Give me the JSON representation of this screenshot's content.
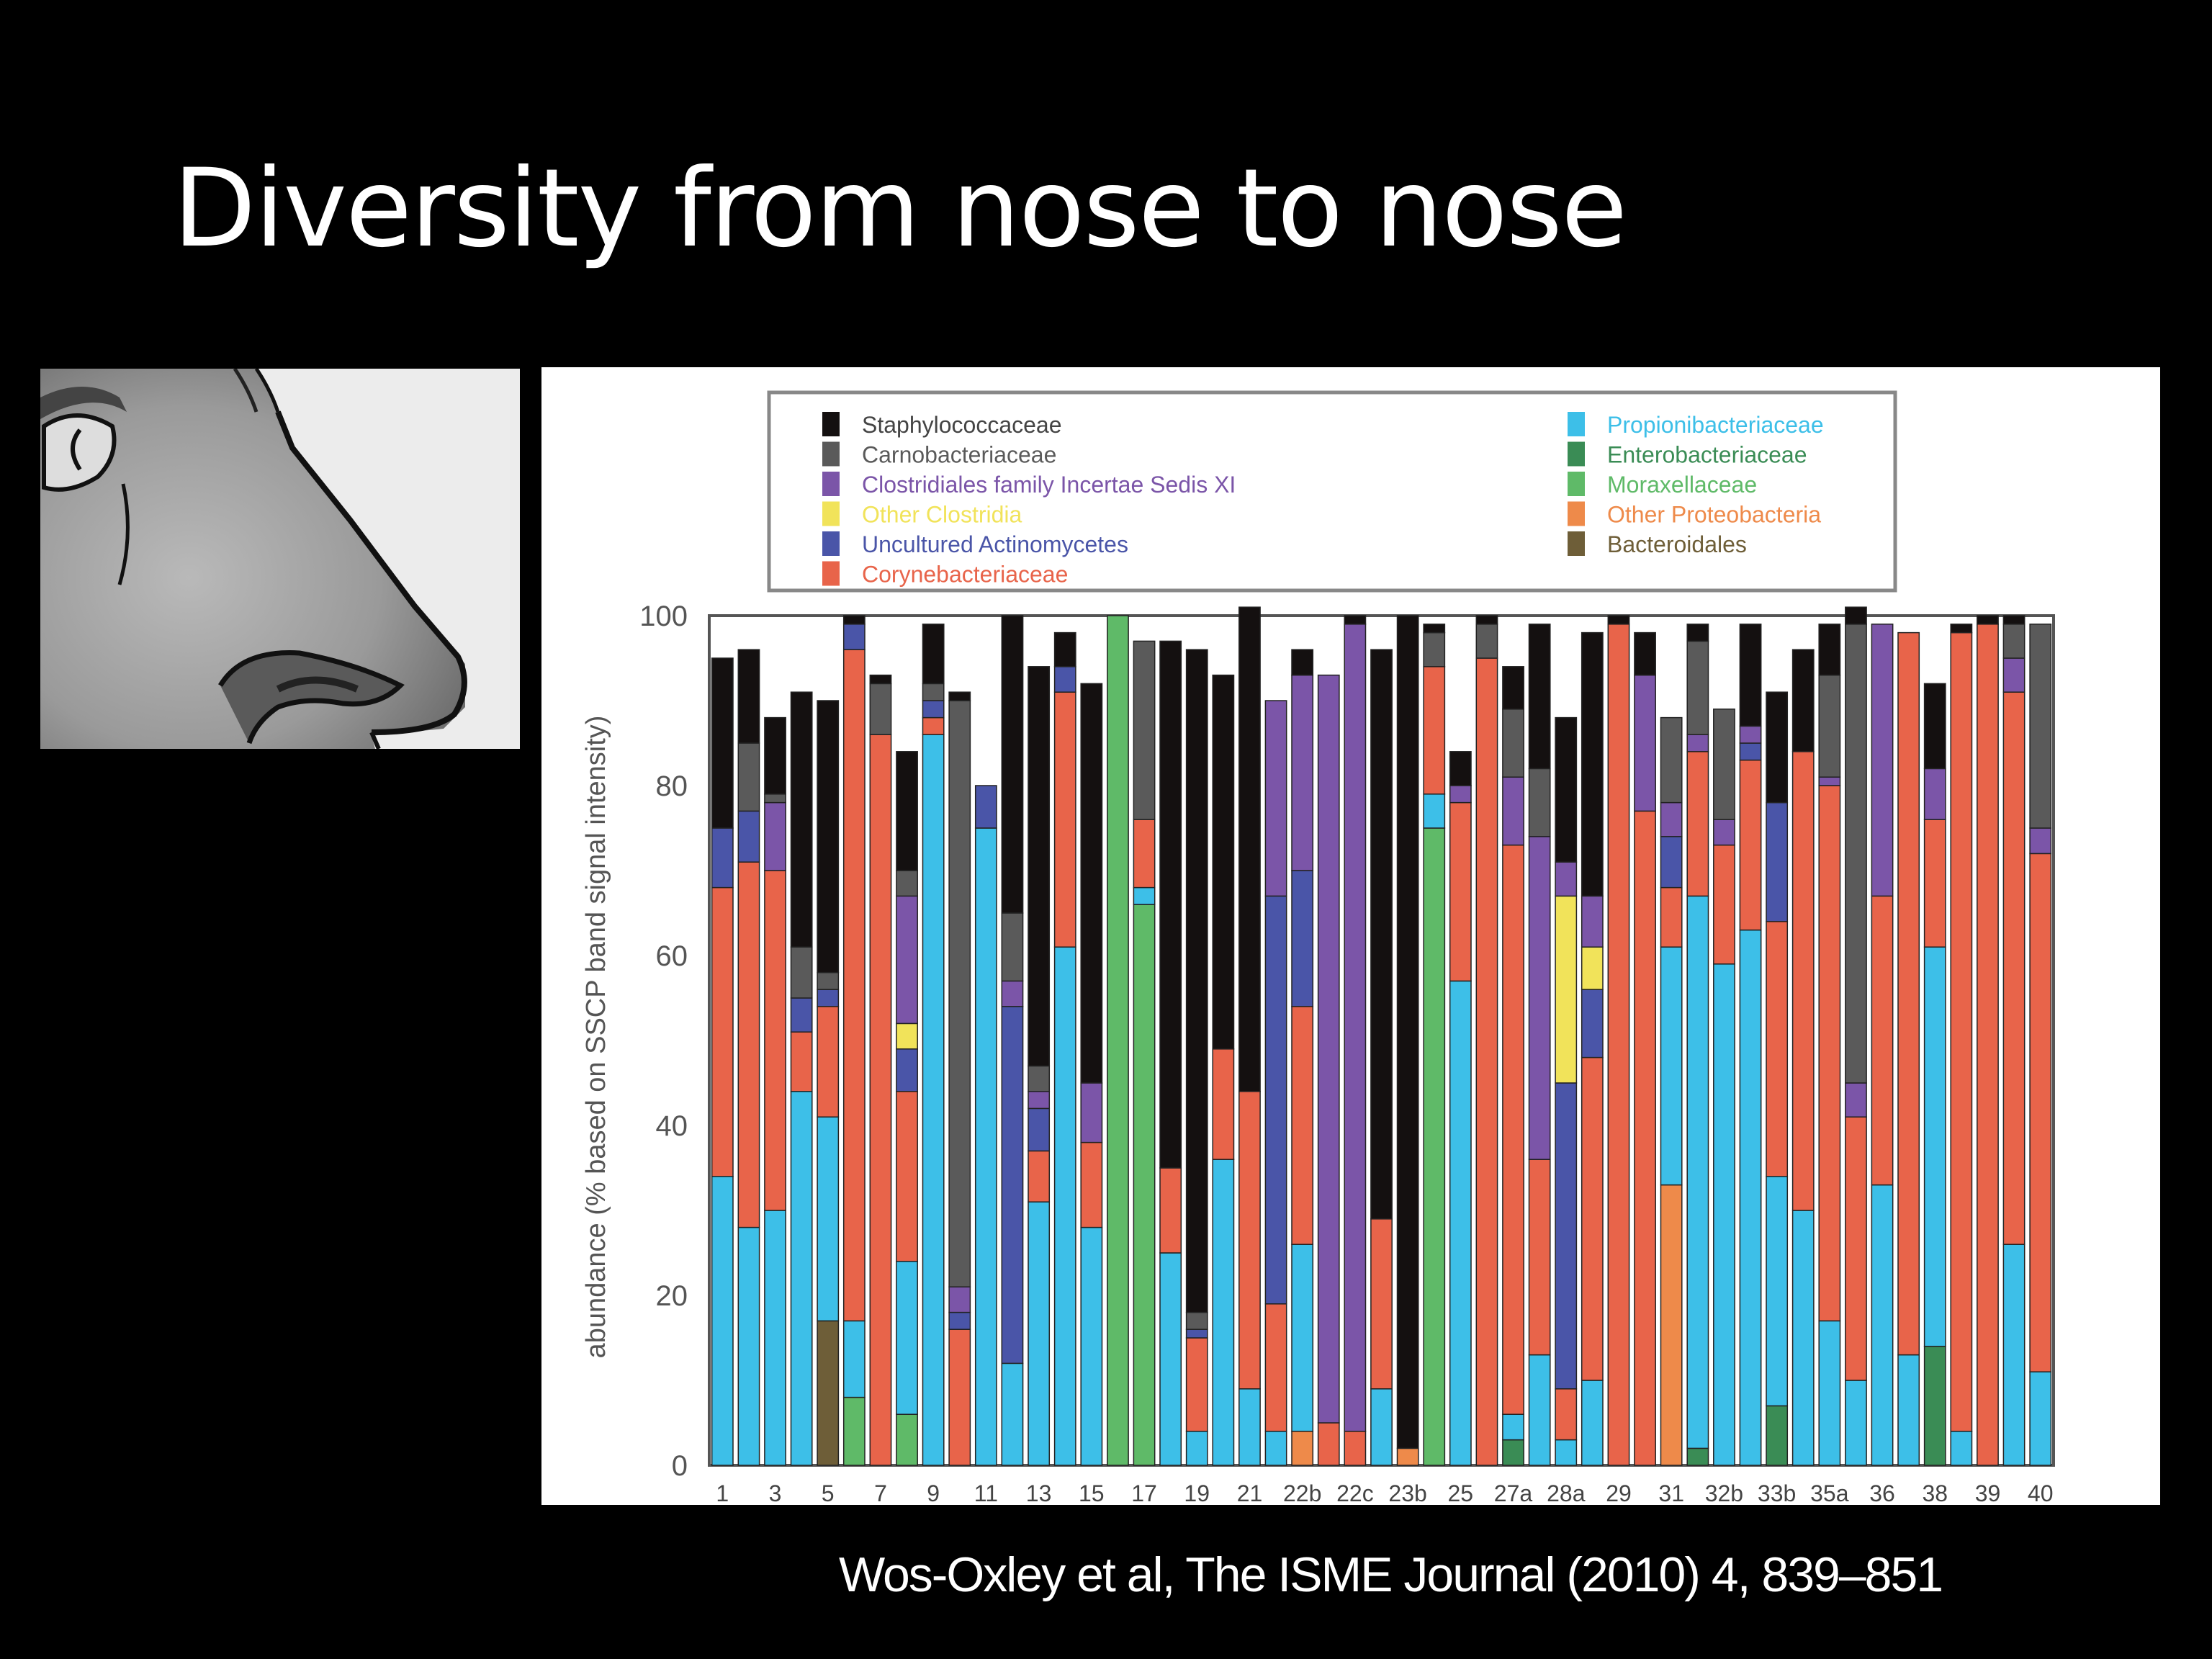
{
  "slide": {
    "title": "Diversity from nose to nose",
    "citation": "Wos-Oxley et al, The ISME Journal (2010) 4, 839–851",
    "illustration": "nose-profile-drawing"
  },
  "chart_data": {
    "type": "bar",
    "stacked": true,
    "title": "",
    "xlabel": "",
    "ylabel": "abundance (% based on SSCP band signal intensity)",
    "ylim": [
      0,
      100
    ],
    "yticks": [
      0,
      20,
      40,
      60,
      80,
      100
    ],
    "grid": false,
    "legend_placement": "top",
    "legend": [
      {
        "key": "staph",
        "label": "Staphylococcaceae",
        "color": "#141010"
      },
      {
        "key": "carno",
        "label": "Carnobacteriaceae",
        "color": "#5a5a5a"
      },
      {
        "key": "clos",
        "label": "Clostridiales family Incertae Sedis XI",
        "color": "#7b55a8"
      },
      {
        "key": "oclos",
        "label": "Other Clostridia",
        "color": "#f1e35a"
      },
      {
        "key": "unact",
        "label": "Uncultured Actinomycetes",
        "color": "#4a55a8"
      },
      {
        "key": "coryn",
        "label": "Corynebacteriaceae",
        "color": "#e8644a"
      },
      {
        "key": "propi",
        "label": "Propionibacteriaceae",
        "color": "#3dbfe8"
      },
      {
        "key": "entero",
        "label": "Enterobacteriaceae",
        "color": "#3a8c55"
      },
      {
        "key": "morax",
        "label": "Moraxellaceae",
        "color": "#5fba68"
      },
      {
        "key": "oprot",
        "label": "Other Proteobacteria",
        "color": "#ee8a4a"
      },
      {
        "key": "bact",
        "label": "Bacteroidales",
        "color": "#6e5e38"
      }
    ],
    "tick_labels": [
      "1",
      "3",
      "5",
      "7",
      "9",
      "11",
      "13",
      "15",
      "17",
      "19",
      "21",
      "22b",
      "22c",
      "23b",
      "25",
      "27a",
      "28a",
      "29",
      "31",
      "32b",
      "33b",
      "35a",
      "36",
      "38",
      "39",
      "40"
    ],
    "bars": [
      [
        [
          "propi",
          34
        ],
        [
          "coryn",
          34
        ],
        [
          "unact",
          7
        ],
        [
          "staph",
          20
        ]
      ],
      [
        [
          "propi",
          28
        ],
        [
          "coryn",
          43
        ],
        [
          "unact",
          6
        ],
        [
          "carno",
          8
        ],
        [
          "staph",
          11
        ]
      ],
      [
        [
          "propi",
          30
        ],
        [
          "coryn",
          40
        ],
        [
          "clos",
          8
        ],
        [
          "carno",
          1
        ],
        [
          "staph",
          9
        ]
      ],
      [
        [
          "propi",
          44
        ],
        [
          "coryn",
          7
        ],
        [
          "unact",
          4
        ],
        [
          "carno",
          6
        ],
        [
          "staph",
          30
        ]
      ],
      [
        [
          "bact",
          17
        ],
        [
          "propi",
          24
        ],
        [
          "coryn",
          13
        ],
        [
          "unact",
          2
        ],
        [
          "carno",
          2
        ],
        [
          "staph",
          32
        ]
      ],
      [
        [
          "morax",
          8
        ],
        [
          "propi",
          9
        ],
        [
          "coryn",
          79
        ],
        [
          "unact",
          3
        ],
        [
          "staph",
          1
        ]
      ],
      [
        [
          "coryn",
          86
        ],
        [
          "carno",
          6
        ],
        [
          "staph",
          1
        ]
      ],
      [
        [
          "morax",
          6
        ],
        [
          "propi",
          18
        ],
        [
          "coryn",
          20
        ],
        [
          "unact",
          5
        ],
        [
          "oclos",
          3
        ],
        [
          "clos",
          15
        ],
        [
          "carno",
          3
        ],
        [
          "staph",
          14
        ]
      ],
      [
        [
          "propi",
          86
        ],
        [
          "coryn",
          2
        ],
        [
          "unact",
          2
        ],
        [
          "carno",
          2
        ],
        [
          "staph",
          7
        ]
      ],
      [
        [
          "coryn",
          16
        ],
        [
          "unact",
          2
        ],
        [
          "clos",
          3
        ],
        [
          "carno",
          69
        ],
        [
          "staph",
          1
        ]
      ],
      [
        [
          "propi",
          75
        ],
        [
          "unact",
          5
        ]
      ],
      [
        [
          "propi",
          12
        ],
        [
          "unact",
          42
        ],
        [
          "clos",
          3
        ],
        [
          "carno",
          8
        ],
        [
          "staph",
          35
        ]
      ],
      [
        [
          "propi",
          31
        ],
        [
          "coryn",
          6
        ],
        [
          "unact",
          5
        ],
        [
          "clos",
          2
        ],
        [
          "carno",
          3
        ],
        [
          "staph",
          47
        ]
      ],
      [
        [
          "propi",
          61
        ],
        [
          "coryn",
          30
        ],
        [
          "unact",
          3
        ],
        [
          "staph",
          4
        ]
      ],
      [
        [
          "propi",
          28
        ],
        [
          "coryn",
          10
        ],
        [
          "clos",
          7
        ],
        [
          "staph",
          47
        ]
      ],
      [
        [
          "morax",
          100
        ]
      ],
      [
        [
          "morax",
          66
        ],
        [
          "propi",
          2
        ],
        [
          "coryn",
          8
        ],
        [
          "carno",
          21
        ]
      ],
      [
        [
          "propi",
          25
        ],
        [
          "coryn",
          10
        ],
        [
          "staph",
          62
        ]
      ],
      [
        [
          "propi",
          4
        ],
        [
          "coryn",
          11
        ],
        [
          "unact",
          1
        ],
        [
          "carno",
          2
        ],
        [
          "staph",
          78
        ]
      ],
      [
        [
          "propi",
          36
        ],
        [
          "coryn",
          13
        ],
        [
          "staph",
          44
        ]
      ],
      [
        [
          "propi",
          9
        ],
        [
          "coryn",
          35
        ],
        [
          "staph",
          57
        ]
      ],
      [
        [
          "propi",
          4
        ],
        [
          "coryn",
          15
        ],
        [
          "unact",
          48
        ],
        [
          "clos",
          23
        ]
      ],
      [
        [
          "oprot",
          4
        ],
        [
          "propi",
          22
        ],
        [
          "coryn",
          28
        ],
        [
          "unact",
          16
        ],
        [
          "clos",
          23
        ],
        [
          "staph",
          3
        ]
      ],
      [
        [
          "coryn",
          5
        ],
        [
          "clos",
          88
        ]
      ],
      [
        [
          "coryn",
          4
        ],
        [
          "clos",
          95
        ],
        [
          "staph",
          1
        ]
      ],
      [
        [
          "propi",
          9
        ],
        [
          "coryn",
          20
        ],
        [
          "staph",
          67
        ]
      ],
      [
        [
          "oprot",
          2
        ],
        [
          "staph",
          98
        ]
      ],
      [
        [
          "morax",
          75
        ],
        [
          "propi",
          4
        ],
        [
          "coryn",
          15
        ],
        [
          "carno",
          4
        ],
        [
          "staph",
          1
        ]
      ],
      [
        [
          "propi",
          57
        ],
        [
          "coryn",
          21
        ],
        [
          "clos",
          2
        ],
        [
          "staph",
          4
        ]
      ],
      [
        [
          "coryn",
          95
        ],
        [
          "carno",
          4
        ],
        [
          "staph",
          1
        ]
      ],
      [
        [
          "entero",
          3
        ],
        [
          "propi",
          3
        ],
        [
          "coryn",
          67
        ],
        [
          "clos",
          8
        ],
        [
          "carno",
          8
        ],
        [
          "staph",
          5
        ]
      ],
      [
        [
          "propi",
          13
        ],
        [
          "coryn",
          23
        ],
        [
          "clos",
          38
        ],
        [
          "carno",
          8
        ],
        [
          "staph",
          17
        ]
      ],
      [
        [
          "propi",
          3
        ],
        [
          "coryn",
          6
        ],
        [
          "unact",
          36
        ],
        [
          "oclos",
          22
        ],
        [
          "clos",
          4
        ],
        [
          "staph",
          17
        ]
      ],
      [
        [
          "propi",
          10
        ],
        [
          "coryn",
          38
        ],
        [
          "unact",
          8
        ],
        [
          "oclos",
          5
        ],
        [
          "clos",
          6
        ],
        [
          "staph",
          31
        ]
      ],
      [
        [
          "coryn",
          99
        ],
        [
          "staph",
          1
        ]
      ],
      [
        [
          "coryn",
          77
        ],
        [
          "clos",
          16
        ],
        [
          "staph",
          5
        ]
      ],
      [
        [
          "oprot",
          33
        ],
        [
          "propi",
          28
        ],
        [
          "coryn",
          7
        ],
        [
          "unact",
          6
        ],
        [
          "clos",
          4
        ],
        [
          "carno",
          10
        ]
      ],
      [
        [
          "entero",
          2
        ],
        [
          "propi",
          65
        ],
        [
          "coryn",
          17
        ],
        [
          "clos",
          2
        ],
        [
          "carno",
          11
        ],
        [
          "staph",
          2
        ]
      ],
      [
        [
          "propi",
          59
        ],
        [
          "coryn",
          14
        ],
        [
          "clos",
          3
        ],
        [
          "carno",
          13
        ]
      ],
      [
        [
          "propi",
          63
        ],
        [
          "coryn",
          20
        ],
        [
          "unact",
          2
        ],
        [
          "clos",
          2
        ],
        [
          "staph",
          12
        ]
      ],
      [
        [
          "entero",
          7
        ],
        [
          "propi",
          27
        ],
        [
          "coryn",
          30
        ],
        [
          "unact",
          14
        ],
        [
          "staph",
          13
        ]
      ],
      [
        [
          "propi",
          30
        ],
        [
          "coryn",
          54
        ],
        [
          "staph",
          12
        ]
      ],
      [
        [
          "propi",
          17
        ],
        [
          "coryn",
          63
        ],
        [
          "clos",
          1
        ],
        [
          "carno",
          12
        ],
        [
          "staph",
          6
        ]
      ],
      [
        [
          "propi",
          10
        ],
        [
          "coryn",
          31
        ],
        [
          "clos",
          4
        ],
        [
          "carno",
          54
        ],
        [
          "staph",
          2
        ]
      ],
      [
        [
          "propi",
          33
        ],
        [
          "coryn",
          34
        ],
        [
          "clos",
          32
        ]
      ],
      [
        [
          "propi",
          13
        ],
        [
          "coryn",
          85
        ]
      ],
      [
        [
          "entero",
          14
        ],
        [
          "propi",
          47
        ],
        [
          "coryn",
          15
        ],
        [
          "clos",
          6
        ],
        [
          "staph",
          10
        ]
      ],
      [
        [
          "propi",
          4
        ],
        [
          "coryn",
          94
        ],
        [
          "staph",
          1
        ]
      ],
      [
        [
          "coryn",
          99
        ],
        [
          "staph",
          1
        ]
      ],
      [
        [
          "propi",
          26
        ],
        [
          "coryn",
          65
        ],
        [
          "clos",
          4
        ],
        [
          "carno",
          4
        ],
        [
          "staph",
          1
        ]
      ],
      [
        [
          "propi",
          11
        ],
        [
          "coryn",
          61
        ],
        [
          "clos",
          3
        ],
        [
          "carno",
          24
        ]
      ]
    ]
  }
}
